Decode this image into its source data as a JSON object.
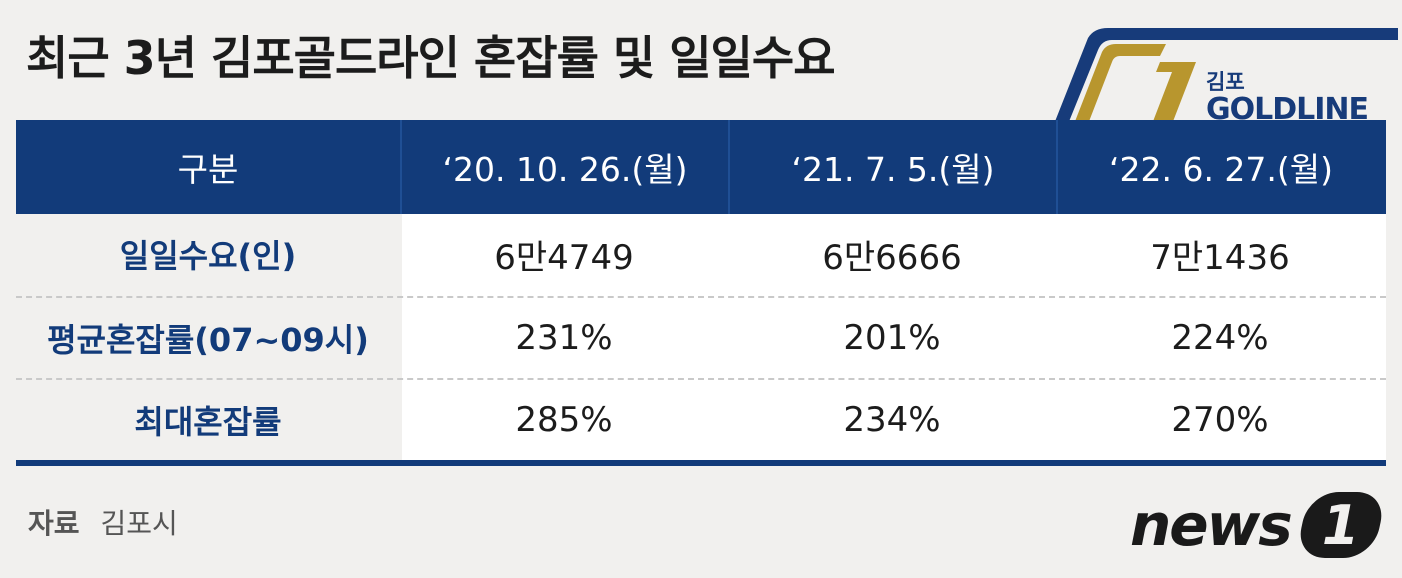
{
  "title": "최근 3년 김포골드라인 혼잡률 및 일일수요",
  "logo": {
    "small": "김포",
    "big": "GOLDLINE",
    "colors": {
      "navy": "#173b7a",
      "gold": "#b8962e"
    }
  },
  "table": {
    "headers": [
      "구분",
      "‘20. 10. 26.(월)",
      "‘21. 7. 5.(월)",
      "‘22. 6. 27.(월)"
    ],
    "rows": [
      {
        "label": "일일수요(인)",
        "values": [
          "6만4749",
          "6만6666",
          "7만1436"
        ]
      },
      {
        "label": "평균혼잡률(07~09시)",
        "values": [
          "231%",
          "201%",
          "224%"
        ]
      },
      {
        "label": "최대혼잡률",
        "values": [
          "285%",
          "234%",
          "270%"
        ]
      }
    ]
  },
  "source": {
    "label": "자료",
    "value": "김포시"
  },
  "brand": {
    "text": "news",
    "badge": "1"
  }
}
